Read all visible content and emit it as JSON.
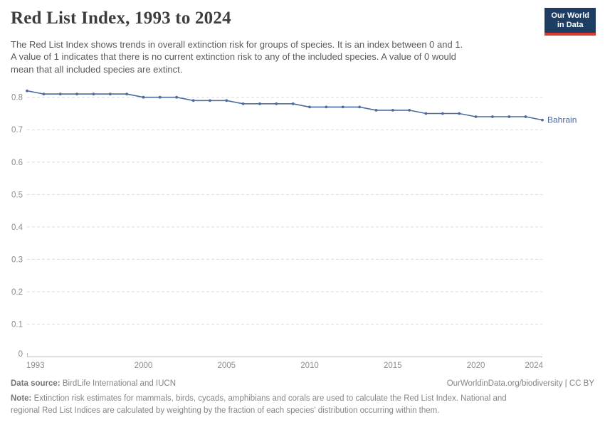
{
  "header": {
    "title": "Red List Index, 1993 to 2024",
    "subtitle": "The Red List Index shows trends in overall extinction risk for groups of species. It is an index between 0 and 1.\nA value of 1 indicates that there is no current extinction risk to any of the included species. A value of 0 would\nmean that all included species are extinct."
  },
  "logo": {
    "line1": "Our World",
    "line2": "in Data",
    "bg_color": "#1d3d63",
    "stripe_color": "#d93a2d"
  },
  "chart_data": {
    "type": "line",
    "title": "Red List Index, 1993 to 2024",
    "xlabel": "",
    "ylabel": "",
    "xlim": [
      1993,
      2024
    ],
    "ylim": [
      0,
      0.85
    ],
    "xticks": [
      "1993",
      "2000",
      "2005",
      "2010",
      "2015",
      "2020",
      "2024"
    ],
    "yticks": [
      "0",
      "0.1",
      "0.2",
      "0.3",
      "0.4",
      "0.5",
      "0.6",
      "0.7",
      "0.8"
    ],
    "grid": "horizontal-dashed",
    "legend_position": "end-of-line-label",
    "line_color": "#4C6A9C",
    "series": [
      {
        "name": "Bahrain",
        "x": [
          1993,
          1994,
          1995,
          1996,
          1997,
          1998,
          1999,
          2000,
          2001,
          2002,
          2003,
          2004,
          2005,
          2006,
          2007,
          2008,
          2009,
          2010,
          2011,
          2012,
          2013,
          2014,
          2015,
          2016,
          2017,
          2018,
          2019,
          2020,
          2021,
          2022,
          2023,
          2024
        ],
        "values": [
          0.82,
          0.81,
          0.81,
          0.81,
          0.81,
          0.81,
          0.81,
          0.8,
          0.8,
          0.8,
          0.79,
          0.79,
          0.79,
          0.78,
          0.78,
          0.78,
          0.78,
          0.77,
          0.77,
          0.77,
          0.77,
          0.76,
          0.76,
          0.76,
          0.75,
          0.75,
          0.75,
          0.74,
          0.74,
          0.74,
          0.74,
          0.73
        ]
      }
    ]
  },
  "footer": {
    "source_label": "Data source:",
    "source_text": " BirdLife International and IUCN",
    "rights": "OurWorldinData.org/biodiversity | CC BY",
    "note_label": "Note:",
    "note_text": " Extinction risk estimates for mammals, birds, cycads, amphibians and corals are used to calculate the Red List Index. National and\nregional Red List Indices are calculated by weighting by the fraction of each species' distribution occurring within them."
  }
}
